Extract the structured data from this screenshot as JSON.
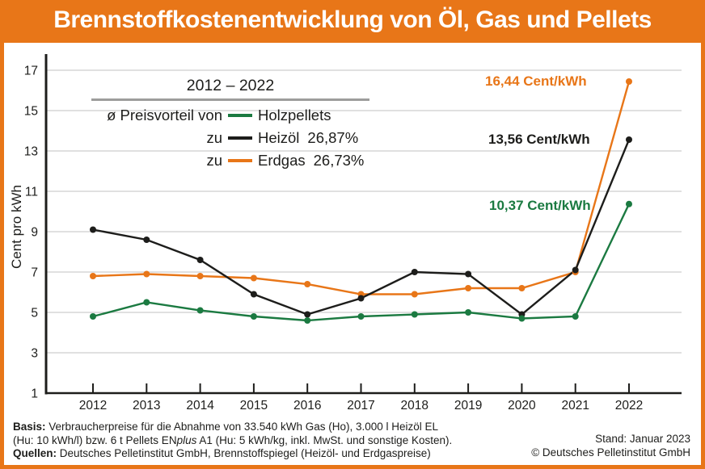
{
  "header": {
    "title": "Brennstoffkostenentwicklung von Öl, Gas und Pellets"
  },
  "colors": {
    "brand_orange": "#e87618",
    "pellets_green": "#1b7a41",
    "heizoel_black": "#1d1d1b",
    "grid_gray": "#cdcdcd",
    "legend_rule_gray": "#9d9d9c",
    "title_text": "#ffffff",
    "background": "#ffffff"
  },
  "chart_data": {
    "type": "line",
    "title": "Brennstoffkostenentwicklung von Öl, Gas und Pellets",
    "xlabel": "",
    "ylabel": "Cent pro kWh",
    "ylim": [
      1,
      17
    ],
    "yticks": [
      1,
      3,
      5,
      7,
      9,
      11,
      13,
      15,
      17
    ],
    "grid": true,
    "x": [
      "2012",
      "2013",
      "2014",
      "2015",
      "2016",
      "2017",
      "2018",
      "2019",
      "2020",
      "2021",
      "2022"
    ],
    "series": [
      {
        "name": "Holzpellets",
        "color": "#1b7a41",
        "values": [
          4.8,
          5.5,
          5.1,
          4.8,
          4.6,
          4.8,
          4.9,
          5.0,
          4.7,
          4.8,
          10.37
        ],
        "final_label": "10,37 Cent/kWh"
      },
      {
        "name": "Heizöl",
        "color": "#1d1d1b",
        "values": [
          9.1,
          8.6,
          7.6,
          5.9,
          4.9,
          5.7,
          7.0,
          6.9,
          4.9,
          7.1,
          13.56
        ],
        "final_label": "13,56 Cent/kWh"
      },
      {
        "name": "Erdgas",
        "color": "#e87618",
        "values": [
          6.8,
          6.9,
          6.8,
          6.7,
          6.4,
          5.9,
          5.9,
          6.2,
          6.2,
          7.0,
          16.44
        ],
        "final_label": "16,44 Cent/kWh"
      }
    ],
    "legend": {
      "position": "upper-left",
      "heading": "2012 – 2022",
      "rows": [
        {
          "prefix": "ø Preisvorteil von",
          "label": "Holzpellets",
          "value": ""
        },
        {
          "prefix": "zu",
          "label": "Heizöl",
          "value": "26,87%"
        },
        {
          "prefix": "zu",
          "label": "Erdgas",
          "value": "26,73%"
        }
      ]
    }
  },
  "footer": {
    "basis_label": "Basis:",
    "basis_text": " Verbraucherpreise für die Abnahme von 33.540 kWh Gas (Ho), 3.000 l Heizöl EL",
    "line2_pre": "(Hu: 10 kWh/l) bzw. 6 t Pellets EN",
    "line2_italic": "plus",
    "line2_post": " A1 (Hu: 5 kWh/kg, inkl. MwSt. und sonstige Kosten).",
    "quellen_label": "Quellen:",
    "quellen_text": " Deutsches Pelletinstitut GmbH, Brennstoffspiegel (Heizöl- und Erdgaspreise)",
    "stand": "Stand: Januar 2023",
    "copyright": "© Deutsches Pelletinstitut GmbH"
  }
}
